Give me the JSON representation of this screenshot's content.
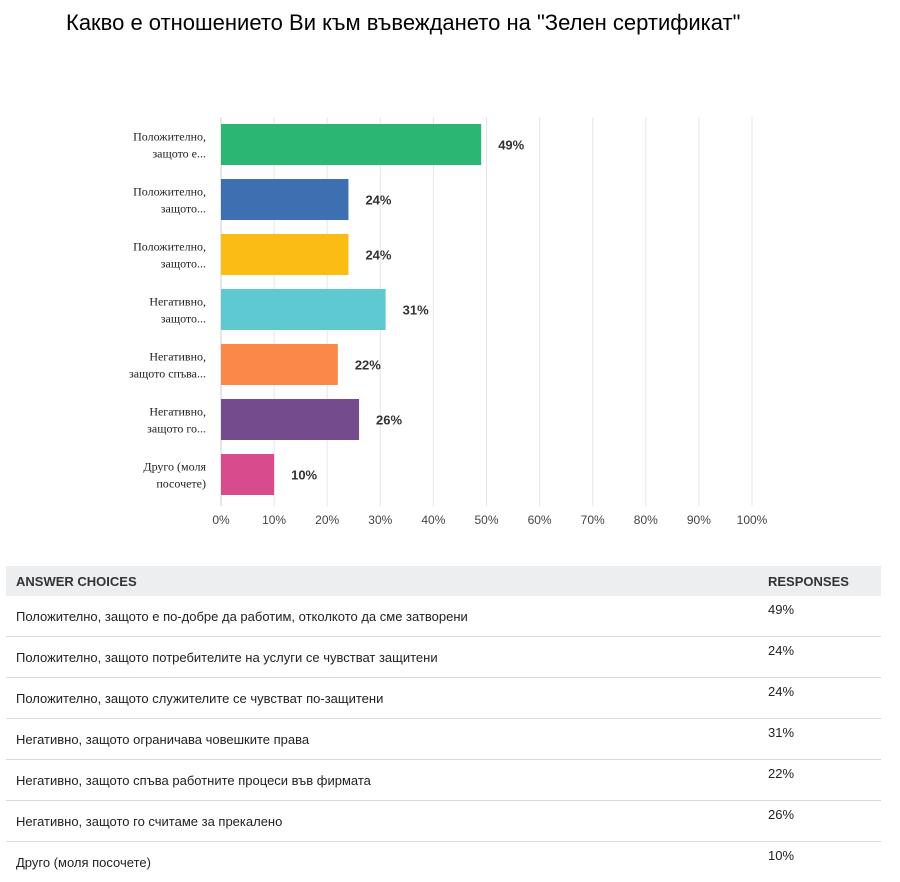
{
  "title": "Какво е отношението Ви към въвеждането на \"Зелен сертификат\"",
  "chart_data": {
    "type": "bar",
    "orientation": "horizontal",
    "categories": [
      [
        "Положително,",
        "защото е..."
      ],
      [
        "Положително,",
        "защото..."
      ],
      [
        "Положително,",
        "защото..."
      ],
      [
        "Негативно,",
        "защото..."
      ],
      [
        "Негативно,",
        "защото спъва..."
      ],
      [
        "Негативно,",
        "защото го..."
      ],
      [
        "Друго (моля",
        "посочете)"
      ]
    ],
    "values": [
      49,
      24,
      24,
      31,
      22,
      26,
      10
    ],
    "value_labels": [
      "49%",
      "24%",
      "24%",
      "31%",
      "22%",
      "26%",
      "10%"
    ],
    "colors": [
      "#2bb673",
      "#3e6fb0",
      "#fbbc13",
      "#5ec9d0",
      "#fb8748",
      "#744c8e",
      "#d84c8e"
    ],
    "xlim": [
      0,
      100
    ],
    "xticks": [
      "0%",
      "10%",
      "20%",
      "30%",
      "40%",
      "50%",
      "60%",
      "70%",
      "80%",
      "90%",
      "100%"
    ],
    "grid": true
  },
  "table": {
    "headers": {
      "choice": "ANSWER CHOICES",
      "responses": "RESPONSES"
    },
    "rows": [
      {
        "choice": "Положително, защото е по-добре да работим, отколкото да сме затворени",
        "response": "49%"
      },
      {
        "choice": "Положително, защото потребителите на услуги се чувстват защитени",
        "response": "24%"
      },
      {
        "choice": "Положително, защото служителите се чувстват по-защитени",
        "response": "24%"
      },
      {
        "choice": "Негативно, защото ограничава човешките права",
        "response": "31%"
      },
      {
        "choice": "Негативно, защото спъва работните процеси във фирмата",
        "response": "22%"
      },
      {
        "choice": "Негативно, защото го считаме за прекалено",
        "response": "26%"
      },
      {
        "choice": "Друго (моля посочете)",
        "response": "10%"
      }
    ]
  }
}
